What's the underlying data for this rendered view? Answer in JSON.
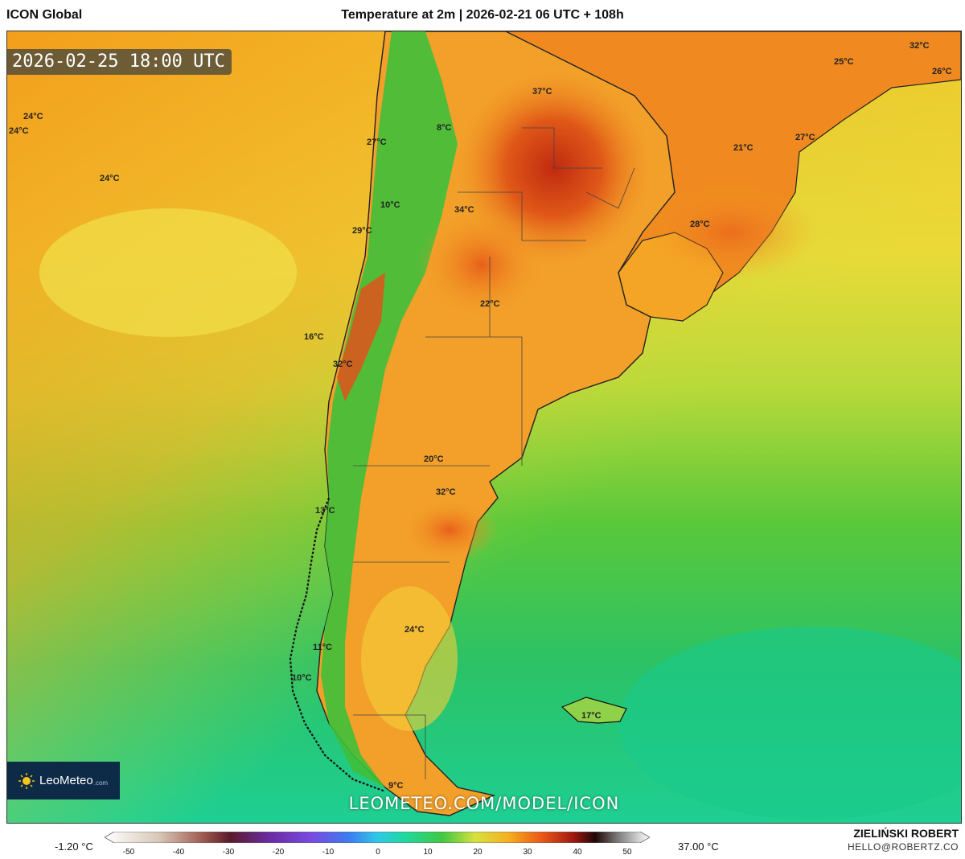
{
  "header": {
    "model": "ICON Global",
    "title": "Temperature at 2m | 2026-02-21 06 UTC + 108h"
  },
  "map": {
    "valid_time": "2026-02-25 18:00 UTC",
    "watermark": "LEOMETEO.COM/MODEL/ICON",
    "logo": {
      "name": "LeoMeteo",
      "suffix": ".com"
    },
    "labels": [
      {
        "text": "24°C"
      },
      {
        "text": "24°C"
      },
      {
        "text": "24°C"
      },
      {
        "text": "27°C"
      },
      {
        "text": "8°C"
      },
      {
        "text": "37°C"
      },
      {
        "text": "32°C"
      },
      {
        "text": "25°C"
      },
      {
        "text": "26°C"
      },
      {
        "text": "21°C"
      },
      {
        "text": "27°C"
      },
      {
        "text": "10°C"
      },
      {
        "text": "34°C"
      },
      {
        "text": "29°C"
      },
      {
        "text": "28°C"
      },
      {
        "text": "22°C"
      },
      {
        "text": "16°C"
      },
      {
        "text": "32°C"
      },
      {
        "text": "20°C"
      },
      {
        "text": "32°C"
      },
      {
        "text": "13°C"
      },
      {
        "text": "24°C"
      },
      {
        "text": "11°C"
      },
      {
        "text": "10°C"
      },
      {
        "text": "17°C"
      },
      {
        "text": "9°C"
      }
    ]
  },
  "legend": {
    "min_label": "-1.20 °C",
    "max_label": "37.00 °C",
    "ticks": [
      "-50",
      "-40",
      "-30",
      "-20",
      "-10",
      "0",
      "10",
      "20",
      "30",
      "40",
      "50"
    ]
  },
  "credit": {
    "author": "ZIELIŃSKI ROBERT",
    "email": "HELLO@ROBERTZ.CO"
  }
}
